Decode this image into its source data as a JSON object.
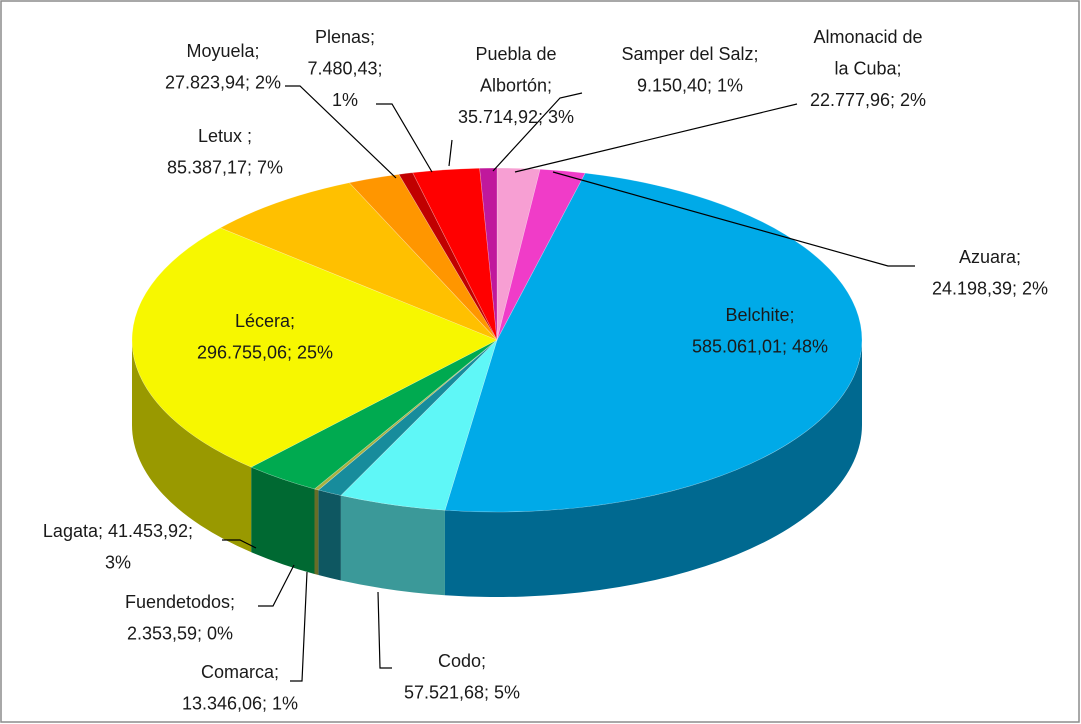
{
  "chart_data": {
    "type": "pie3d",
    "separator": ";",
    "categories": [
      "Almonacid de la Cuba",
      "Azuara",
      "Belchite",
      "Codo",
      "Comarca",
      "Fuendetodos",
      "Lagata",
      "Lécera",
      "Letux ",
      "Moyuela",
      "Plenas",
      "Puebla de Albortón",
      "Samper del Salz"
    ],
    "values": [
      22777.96,
      24198.39,
      585061.01,
      57521.68,
      13346.06,
      2353.59,
      41453.92,
      296755.06,
      85387.17,
      27823.94,
      7480.43,
      35714.92,
      9150.4
    ],
    "value_labels": [
      "22.777,96",
      "24.198,39",
      "585.061,01",
      "57.521,68",
      "13.346,06",
      "2.353,59",
      "41.453,92",
      "296.755,06",
      "85.387,17",
      "27.823,94",
      "7.480,43",
      "35.714,92",
      "9.150,40"
    ],
    "percent_labels": [
      "2%",
      "2%",
      "48%",
      "5%",
      "1%",
      "0%",
      "3%",
      "25%",
      "7%",
      "2%",
      "1%",
      "3%",
      "1%"
    ],
    "colors": [
      "#f79fd3",
      "#f03cc8",
      "#00aae8",
      "#5ff7f7",
      "#178c9c",
      "#a8b040",
      "#00aa50",
      "#f7f700",
      "#ffc000",
      "#ff9600",
      "#c00000",
      "#ff0000",
      "#c0189c"
    ]
  }
}
